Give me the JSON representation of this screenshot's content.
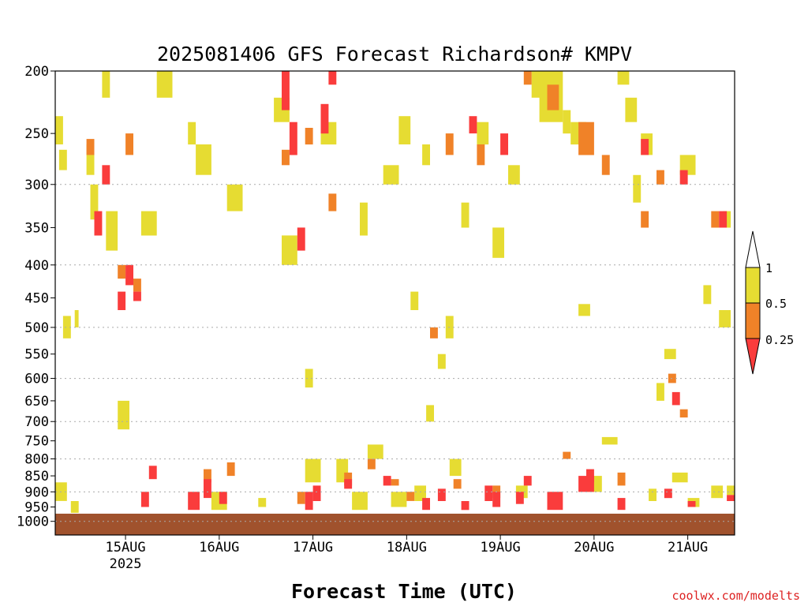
{
  "chart_data": {
    "type": "heatmap",
    "title": "2025081406 GFS Forecast Richardson# KMPV",
    "xlabel": "Forecast Time (UTC)",
    "credit": "coolwx.com/modelts",
    "y_axis": {
      "scale": "log-pressure",
      "range": [
        1050,
        200
      ],
      "ticks": [
        "200",
        "250",
        "300",
        "350",
        "400",
        "450",
        "500",
        "550",
        "600",
        "650",
        "700",
        "750",
        "800",
        "850",
        "900",
        "950",
        "1000"
      ],
      "dotted_gridlines": [
        300,
        400,
        500,
        600,
        700,
        800,
        900,
        1000
      ]
    },
    "x_axis": {
      "range_hours": [
        6,
        180
      ],
      "start": "2025081406",
      "ticks": [
        {
          "label": "15AUG",
          "sublabel": "2025",
          "hour": 24
        },
        {
          "label": "16AUG",
          "sublabel": "",
          "hour": 48
        },
        {
          "label": "17AUG",
          "sublabel": "",
          "hour": 72
        },
        {
          "label": "18AUG",
          "sublabel": "",
          "hour": 96
        },
        {
          "label": "19AUG",
          "sublabel": "",
          "hour": 120
        },
        {
          "label": "20AUG",
          "sublabel": "",
          "hour": 144
        },
        {
          "label": "21AUG",
          "sublabel": "",
          "hour": 168
        }
      ]
    },
    "legend": {
      "placement": "right",
      "labels": [
        "1",
        "0.5",
        "0.25"
      ],
      "colors": {
        "over_1": "#ffffff",
        "r_0_5_to_1": "#e6dc32",
        "r_0_25_to_0_5": "#f08228",
        "under_0_25": "#fa3c3c"
      }
    },
    "ground": {
      "color": "#a0522d",
      "level_hpa": 973
    },
    "series": [
      {
        "category": "0.5-1",
        "color": "#e6dc32",
        "cells": [
          [
            6,
            9,
            930,
            870
          ],
          [
            6,
            8,
            260,
            235
          ],
          [
            7,
            9,
            285,
            265
          ],
          [
            8,
            10,
            520,
            480
          ],
          [
            10,
            12,
            970,
            930
          ],
          [
            11,
            12,
            500,
            470
          ],
          [
            14,
            16,
            290,
            260
          ],
          [
            15,
            17,
            340,
            300
          ],
          [
            18,
            20,
            220,
            200
          ],
          [
            19,
            22,
            380,
            330
          ],
          [
            22,
            25,
            720,
            650
          ],
          [
            28,
            32,
            360,
            330
          ],
          [
            32,
            36,
            220,
            200
          ],
          [
            40,
            42,
            260,
            240
          ],
          [
            42,
            46,
            290,
            260
          ],
          [
            46,
            50,
            960,
            900
          ],
          [
            50,
            54,
            330,
            300
          ],
          [
            58,
            60,
            950,
            920
          ],
          [
            62,
            66,
            240,
            220
          ],
          [
            64,
            68,
            400,
            360
          ],
          [
            70,
            72,
            620,
            580
          ],
          [
            70,
            74,
            870,
            800
          ],
          [
            74,
            78,
            260,
            240
          ],
          [
            78,
            81,
            870,
            800
          ],
          [
            82,
            86,
            960,
            900
          ],
          [
            84,
            86,
            360,
            320
          ],
          [
            86,
            90,
            800,
            760
          ],
          [
            90,
            94,
            300,
            280
          ],
          [
            92,
            96,
            950,
            900
          ],
          [
            94,
            97,
            260,
            235
          ],
          [
            97,
            99,
            470,
            440
          ],
          [
            98,
            101,
            930,
            880
          ],
          [
            100,
            102,
            280,
            260
          ],
          [
            101,
            103,
            700,
            660
          ],
          [
            104,
            106,
            580,
            550
          ],
          [
            106,
            108,
            520,
            480
          ],
          [
            107,
            110,
            850,
            800
          ],
          [
            110,
            112,
            350,
            320
          ],
          [
            114,
            117,
            260,
            240
          ],
          [
            118,
            121,
            390,
            350
          ],
          [
            122,
            125,
            300,
            280
          ],
          [
            124,
            127,
            920,
            880
          ],
          [
            128,
            132,
            220,
            200
          ],
          [
            130,
            136,
            240,
            200
          ],
          [
            136,
            138,
            250,
            230
          ],
          [
            138,
            142,
            260,
            240
          ],
          [
            140,
            143,
            480,
            460
          ],
          [
            142,
            146,
            900,
            850
          ],
          [
            146,
            150,
            760,
            740
          ],
          [
            150,
            153,
            210,
            200
          ],
          [
            152,
            155,
            240,
            220
          ],
          [
            154,
            156,
            320,
            290
          ],
          [
            156,
            159,
            270,
            250
          ],
          [
            158,
            160,
            930,
            890
          ],
          [
            160,
            162,
            650,
            610
          ],
          [
            162,
            165,
            560,
            540
          ],
          [
            164,
            168,
            870,
            840
          ],
          [
            166,
            170,
            290,
            270
          ],
          [
            168,
            171,
            950,
            920
          ],
          [
            172,
            174,
            460,
            430
          ],
          [
            174,
            177,
            920,
            880
          ],
          [
            176,
            179,
            500,
            470
          ],
          [
            177,
            179,
            350,
            330
          ],
          [
            178,
            180,
            910,
            880
          ]
        ]
      },
      {
        "category": "0.25-0.5",
        "color": "#f08228",
        "cells": [
          [
            14,
            16,
            270,
            255
          ],
          [
            22,
            24,
            420,
            400
          ],
          [
            24,
            26,
            270,
            250
          ],
          [
            26,
            28,
            440,
            420
          ],
          [
            44,
            46,
            870,
            830
          ],
          [
            50,
            52,
            850,
            810
          ],
          [
            64,
            66,
            280,
            265
          ],
          [
            68,
            70,
            940,
            900
          ],
          [
            70,
            72,
            260,
            245
          ],
          [
            76,
            78,
            330,
            310
          ],
          [
            80,
            82,
            880,
            840
          ],
          [
            86,
            88,
            830,
            800
          ],
          [
            92,
            94,
            880,
            860
          ],
          [
            96,
            98,
            930,
            900
          ],
          [
            102,
            104,
            520,
            500
          ],
          [
            106,
            108,
            270,
            250
          ],
          [
            108,
            110,
            890,
            860
          ],
          [
            114,
            116,
            280,
            260
          ],
          [
            118,
            120,
            920,
            880
          ],
          [
            126,
            128,
            200,
            210
          ],
          [
            132,
            135,
            230,
            210
          ],
          [
            136,
            138,
            800,
            780
          ],
          [
            140,
            144,
            270,
            240
          ],
          [
            146,
            148,
            290,
            270
          ],
          [
            150,
            152,
            880,
            840
          ],
          [
            156,
            158,
            350,
            330
          ],
          [
            160,
            162,
            300,
            285
          ],
          [
            163,
            165,
            610,
            590
          ],
          [
            166,
            168,
            690,
            670
          ],
          [
            174,
            176,
            350,
            330
          ]
        ]
      },
      {
        "category": "<0.25",
        "color": "#fa3c3c",
        "cells": [
          [
            16,
            18,
            360,
            330
          ],
          [
            18,
            20,
            300,
            280
          ],
          [
            22,
            24,
            470,
            440
          ],
          [
            24,
            26,
            430,
            400
          ],
          [
            26,
            28,
            455,
            440
          ],
          [
            28,
            30,
            950,
            900
          ],
          [
            30,
            32,
            860,
            820
          ],
          [
            40,
            43,
            960,
            900
          ],
          [
            44,
            46,
            920,
            860
          ],
          [
            48,
            50,
            940,
            900
          ],
          [
            64,
            66,
            230,
            200
          ],
          [
            66,
            68,
            270,
            240
          ],
          [
            68,
            70,
            380,
            350
          ],
          [
            70,
            72,
            960,
            900
          ],
          [
            72,
            74,
            930,
            880
          ],
          [
            74,
            76,
            250,
            225
          ],
          [
            76,
            78,
            200,
            210
          ],
          [
            80,
            82,
            890,
            860
          ],
          [
            90,
            92,
            880,
            850
          ],
          [
            100,
            102,
            960,
            920
          ],
          [
            104,
            106,
            930,
            890
          ],
          [
            110,
            112,
            960,
            930
          ],
          [
            112,
            114,
            250,
            235
          ],
          [
            116,
            118,
            930,
            880
          ],
          [
            118,
            120,
            950,
            900
          ],
          [
            120,
            122,
            270,
            250
          ],
          [
            124,
            126,
            940,
            900
          ],
          [
            126,
            128,
            880,
            850
          ],
          [
            132,
            136,
            960,
            900
          ],
          [
            140,
            144,
            900,
            850
          ],
          [
            142,
            144,
            870,
            830
          ],
          [
            150,
            152,
            960,
            920
          ],
          [
            156,
            158,
            270,
            255
          ],
          [
            162,
            164,
            920,
            890
          ],
          [
            164,
            166,
            660,
            630
          ],
          [
            166,
            168,
            300,
            285
          ],
          [
            168,
            170,
            950,
            930
          ],
          [
            176,
            178,
            350,
            330
          ],
          [
            178,
            180,
            930,
            910
          ]
        ]
      }
    ]
  }
}
